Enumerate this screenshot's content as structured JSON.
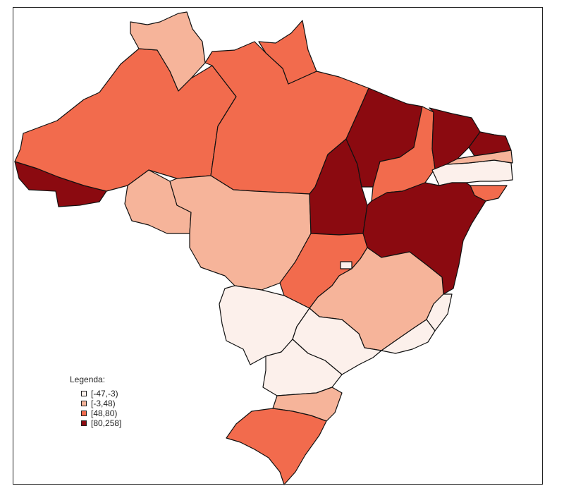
{
  "legend": {
    "title": "Legenda:",
    "classes": [
      {
        "label": "[-47,-3)",
        "color": "#fcf0eb"
      },
      {
        "label": "[-3,48)",
        "color": "#f6b49a"
      },
      {
        "label": "[48,80)",
        "color": "#f26b4d"
      },
      {
        "label": "[80,258]",
        "color": "#8b0a10"
      }
    ]
  },
  "states": [
    {
      "id": "AC",
      "class": 3
    },
    {
      "id": "AM",
      "class": 2
    },
    {
      "id": "RR",
      "class": 1
    },
    {
      "id": "PA",
      "class": 2
    },
    {
      "id": "AP",
      "class": 2
    },
    {
      "id": "RO",
      "class": 1
    },
    {
      "id": "MT",
      "class": 1
    },
    {
      "id": "TO",
      "class": 3
    },
    {
      "id": "MA",
      "class": 3
    },
    {
      "id": "PI",
      "class": 2
    },
    {
      "id": "CE",
      "class": 3
    },
    {
      "id": "RN",
      "class": 3
    },
    {
      "id": "PB",
      "class": 0
    },
    {
      "id": "PE",
      "class": 1
    },
    {
      "id": "AL",
      "class": 2
    },
    {
      "id": "BA",
      "class": 3
    },
    {
      "id": "GO",
      "class": 2
    },
    {
      "id": "DF",
      "class": 0
    },
    {
      "id": "MG",
      "class": 1
    },
    {
      "id": "ES",
      "class": 0
    },
    {
      "id": "MS",
      "class": 0
    },
    {
      "id": "SP",
      "class": 0
    },
    {
      "id": "RJ",
      "class": 0
    },
    {
      "id": "PR",
      "class": 0
    },
    {
      "id": "SC",
      "class": 1
    },
    {
      "id": "RS",
      "class": 2
    }
  ]
}
